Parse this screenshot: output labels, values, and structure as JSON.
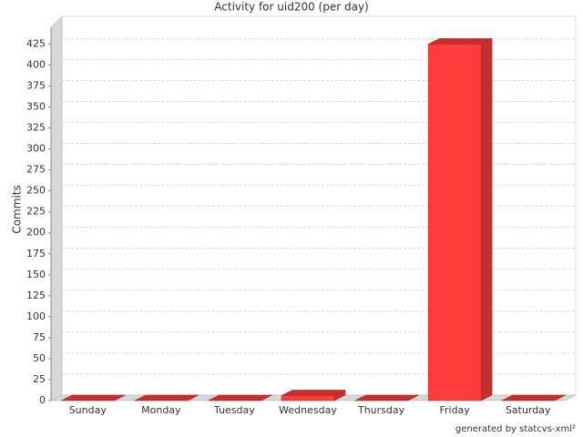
{
  "chart_data": {
    "type": "bar3d",
    "title": "Activity for uid200 (per day)",
    "y_label": "Commits",
    "categories": [
      "Sunday",
      "Monday",
      "Tuesday",
      "Wednesday",
      "Thursday",
      "Friday",
      "Saturday"
    ],
    "values": [
      0,
      0,
      0,
      6,
      0,
      425,
      0
    ],
    "color": "#ff3b3b",
    "ylim": [
      0,
      445
    ],
    "yticks": [
      0,
      25,
      50,
      75,
      100,
      125,
      150,
      175,
      200,
      225,
      250,
      275,
      300,
      325,
      350,
      375,
      400,
      425
    ],
    "grid": true,
    "footer": "generated by statcvs-xml²"
  }
}
